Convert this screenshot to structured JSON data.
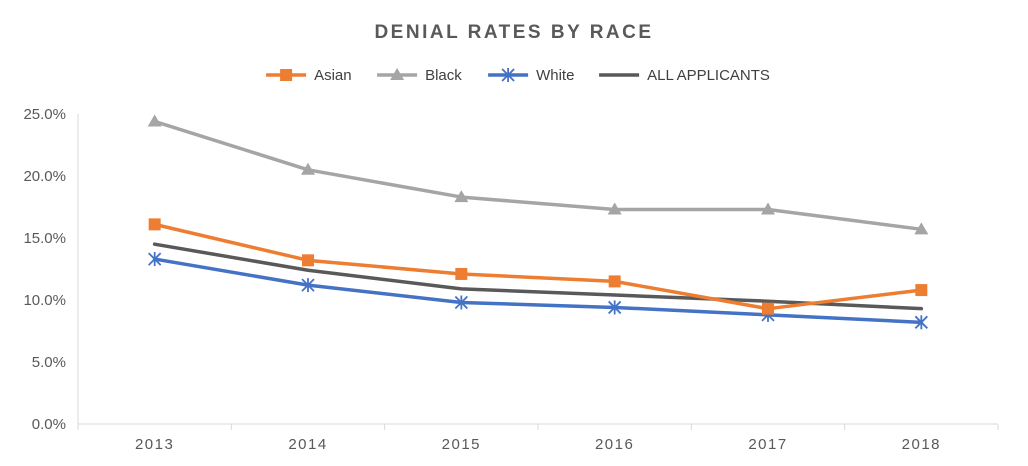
{
  "chart_data": {
    "type": "line",
    "title": "DENIAL RATES BY RACE",
    "xlabel": "",
    "ylabel": "",
    "categories": [
      "2013",
      "2014",
      "2015",
      "2016",
      "2017",
      "2018"
    ],
    "ylim": [
      0,
      0.25
    ],
    "yticks": [
      "0.0%",
      "5.0%",
      "10.0%",
      "15.0%",
      "20.0%",
      "25.0%"
    ],
    "grid": false,
    "legend_position": "top",
    "series": [
      {
        "name": "Asian",
        "color": "#ED7D31",
        "marker": "square",
        "values": [
          0.161,
          0.132,
          0.121,
          0.115,
          0.093,
          0.108
        ]
      },
      {
        "name": "Black",
        "color": "#A5A5A5",
        "marker": "triangle",
        "values": [
          0.244,
          0.205,
          0.183,
          0.173,
          0.173,
          0.157
        ]
      },
      {
        "name": "White",
        "color": "#4472C4",
        "marker": "star",
        "values": [
          0.133,
          0.112,
          0.098,
          0.094,
          0.088,
          0.082
        ]
      },
      {
        "name": "ALL APPLICANTS",
        "color": "#595959",
        "marker": "none",
        "values": [
          0.145,
          0.124,
          0.109,
          0.104,
          0.099,
          0.093
        ]
      }
    ]
  }
}
